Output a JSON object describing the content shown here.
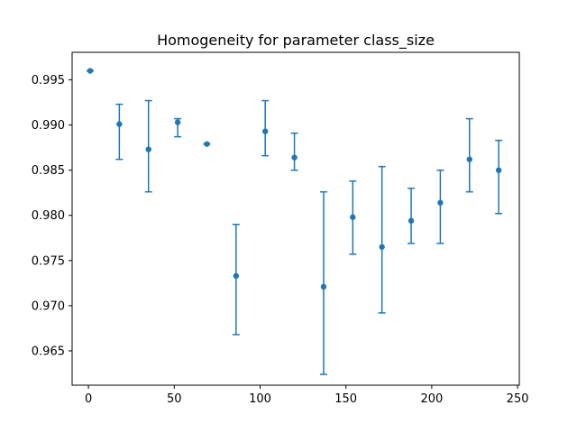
{
  "chart_data": {
    "type": "scatter",
    "title": "Homogeneity for parameter class_size",
    "xlabel": "",
    "ylabel": "",
    "xlim": [
      -9.5,
      251
    ],
    "ylim": [
      0.9612,
      0.99805
    ],
    "x_ticks": [
      0,
      50,
      100,
      150,
      200,
      250
    ],
    "x_tick_labels": [
      "0",
      "50",
      "100",
      "150",
      "200",
      "250"
    ],
    "y_ticks": [
      0.965,
      0.97,
      0.975,
      0.98,
      0.985,
      0.99,
      0.995
    ],
    "y_tick_labels": [
      "0.965",
      "0.970",
      "0.975",
      "0.980",
      "0.985",
      "0.990",
      "0.995"
    ],
    "grid": false,
    "color": "#1f77b4",
    "series": [
      {
        "x": [
          1,
          18,
          35,
          52,
          69,
          86,
          103,
          120,
          137,
          154,
          171,
          188,
          205,
          222,
          239
        ],
        "y": [
          0.996,
          0.9901,
          0.9873,
          0.9903,
          0.9879,
          0.9733,
          0.9893,
          0.9864,
          0.9721,
          0.9798,
          0.9765,
          0.9794,
          0.9814,
          0.9862,
          0.985
        ],
        "yerr_low": [
          0.996,
          0.9862,
          0.9826,
          0.9887,
          0.9879,
          0.9668,
          0.9866,
          0.985,
          0.9624,
          0.9757,
          0.9692,
          0.9769,
          0.9769,
          0.9826,
          0.9802
        ],
        "yerr_high": [
          0.996,
          0.9923,
          0.9927,
          0.9907,
          0.9879,
          0.979,
          0.9927,
          0.9891,
          0.9826,
          0.9838,
          0.9854,
          0.983,
          0.985,
          0.9907,
          0.9883
        ]
      }
    ]
  }
}
